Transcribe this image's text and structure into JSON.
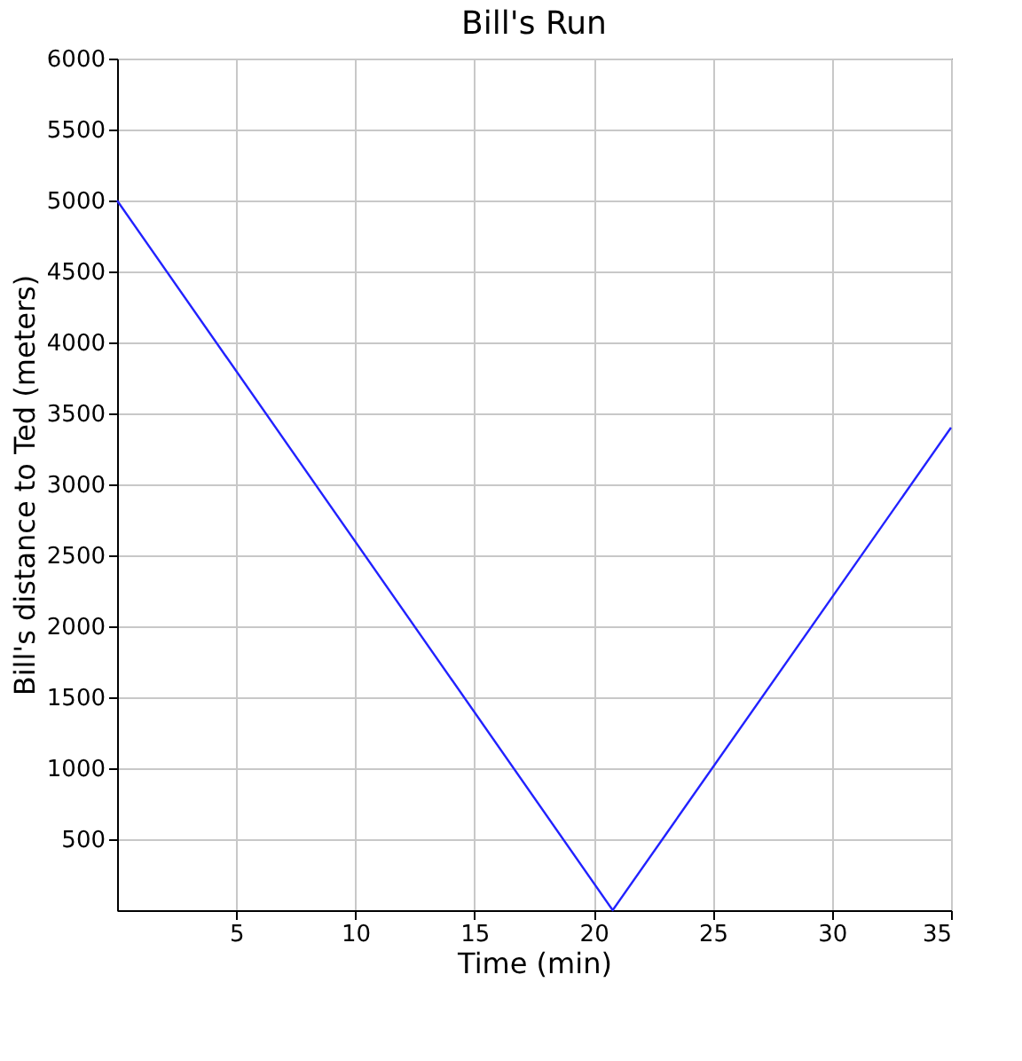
{
  "chart_data": {
    "type": "line",
    "title": "Bill's Run",
    "xlabel": "Time (min)",
    "ylabel": "Bill's distance to Ted (meters)",
    "x": [
      0,
      20.8,
      35
    ],
    "series": [
      {
        "color": "#2222ff",
        "values": [
          5000,
          0,
          3400
        ]
      }
    ],
    "xlim": [
      0,
      35
    ],
    "xticks": [
      5,
      10,
      15,
      20,
      25,
      30,
      35
    ],
    "ylim": [
      0,
      6000
    ],
    "yticks": [
      500,
      1000,
      1500,
      2000,
      2500,
      3000,
      3500,
      4000,
      4500,
      5000,
      5500,
      6000
    ],
    "grid": true,
    "marker": "none",
    "line_style": "solid"
  }
}
